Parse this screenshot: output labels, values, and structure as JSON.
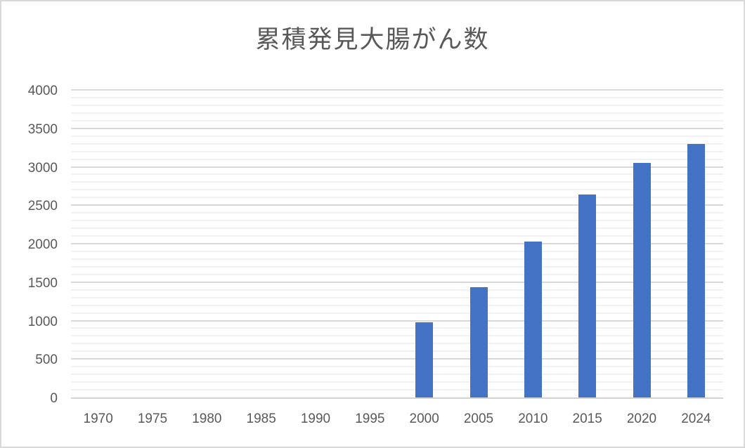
{
  "chart_data": {
    "type": "bar",
    "title": "累積発見大腸がん数",
    "categories": [
      "1970",
      "1975",
      "1980",
      "1985",
      "1990",
      "1995",
      "2000",
      "2005",
      "2010",
      "2015",
      "2020",
      "2024"
    ],
    "values": [
      0,
      0,
      0,
      0,
      0,
      0,
      980,
      1430,
      2030,
      2640,
      3050,
      3300
    ],
    "xlabel": "",
    "ylabel": "",
    "ylim": [
      0,
      4000
    ],
    "y_major_step": 500,
    "y_minor_step": 100,
    "y_tick_labels": [
      "0",
      "500",
      "1000",
      "1500",
      "2000",
      "2500",
      "3000",
      "3500",
      "4000"
    ],
    "grid": "major and minor horizontal gridlines",
    "legend": "none",
    "colors": {
      "bar": "#4472C4",
      "text": "#595959",
      "grid_major": "#D9D9D9",
      "grid_minor": "#F2F2F2",
      "axis_line": "#D3D3D3",
      "frame": "#D9D9D9"
    }
  }
}
